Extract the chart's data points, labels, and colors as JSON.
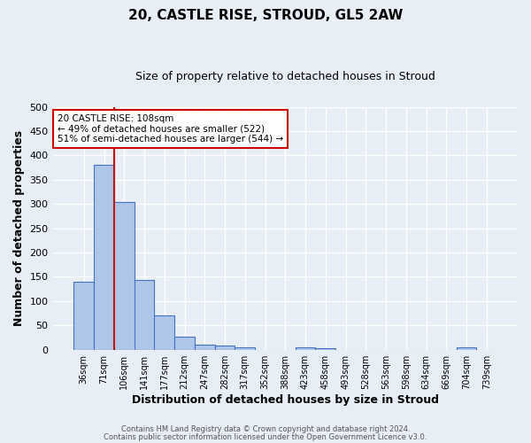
{
  "title1": "20, CASTLE RISE, STROUD, GL5 2AW",
  "title2": "Size of property relative to detached houses in Stroud",
  "xlabel": "Distribution of detached houses by size in Stroud",
  "ylabel": "Number of detached properties",
  "categories": [
    "36sqm",
    "71sqm",
    "106sqm",
    "141sqm",
    "177sqm",
    "212sqm",
    "247sqm",
    "282sqm",
    "317sqm",
    "352sqm",
    "388sqm",
    "423sqm",
    "458sqm",
    "493sqm",
    "528sqm",
    "563sqm",
    "598sqm",
    "634sqm",
    "669sqm",
    "704sqm",
    "739sqm"
  ],
  "values": [
    140,
    380,
    304,
    143,
    70,
    26,
    10,
    9,
    5,
    0,
    0,
    5,
    4,
    0,
    0,
    0,
    0,
    0,
    0,
    5,
    0
  ],
  "bar_color": "#aec6e8",
  "bar_edge_color": "#4472c4",
  "bg_color": "#e8eef5",
  "grid_color": "#ffffff",
  "vline_color": "#cc0000",
  "annotation_text": "20 CASTLE RISE: 108sqm\n← 49% of detached houses are smaller (522)\n51% of semi-detached houses are larger (544) →",
  "annotation_box_color": "#ffffff",
  "annotation_box_edge_color": "#cc0000",
  "footnote1": "Contains HM Land Registry data © Crown copyright and database right 2024.",
  "footnote2": "Contains public sector information licensed under the Open Government Licence v3.0.",
  "ylim": [
    0,
    500
  ],
  "yticks": [
    0,
    50,
    100,
    150,
    200,
    250,
    300,
    350,
    400,
    450,
    500
  ]
}
